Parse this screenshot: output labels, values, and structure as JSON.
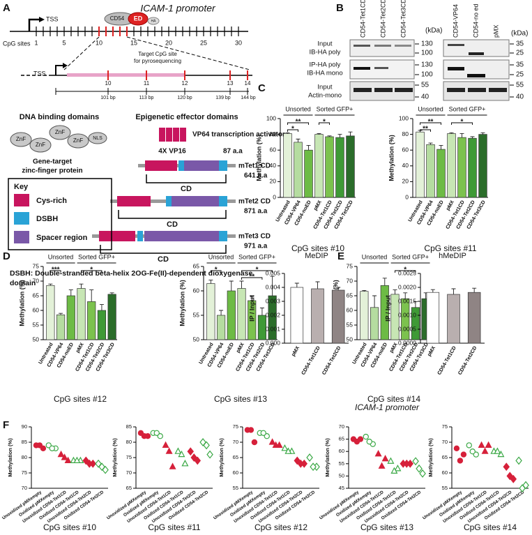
{
  "panel_labels": [
    "A",
    "B",
    "C",
    "D",
    "E",
    "F"
  ],
  "diagram": {
    "promoter_title": "ICAM-1 promoter",
    "tss": [
      "TSS",
      "TSS"
    ],
    "cpg_sites_label": "CpG sites",
    "cpg_site_numbers": [
      1,
      5,
      10,
      15,
      20,
      25,
      30
    ],
    "fusion": {
      "dbd": "CD54",
      "effector": "ED",
      "tag": "HA"
    },
    "target_label": [
      "Target CpG site",
      "for pyrosequencing"
    ],
    "target_sites": [
      10,
      11,
      12,
      13,
      14
    ],
    "distances": [
      "101 bp",
      "113 bp",
      "120 bp",
      "139 bp",
      "144 bp"
    ],
    "dna_binding_title": "DNA binding domains",
    "znf": [
      "ZnF",
      "ZnF",
      "ZnF",
      "ZnF"
    ],
    "nls": "NLS",
    "znf_caption": [
      "Gene-target",
      "zinc-finger protein"
    ],
    "effector_title": "Epigenetic effector domains",
    "vp64": {
      "name": "VP64 transcription activator",
      "composition": "4X VP16",
      "length": "87 a.a"
    },
    "tet_constructs": [
      {
        "name": "mTet1 CD",
        "length": "641 a.a",
        "domain": "CD"
      },
      {
        "name": "mTet2 CD",
        "length": "871 a.a",
        "domain": "CD"
      },
      {
        "name": "mTet3 CD",
        "length": "971 a.a",
        "domain": "CD"
      }
    ],
    "key": {
      "title": "Key",
      "items": [
        "Cys-rich",
        "DSBH",
        "Spacer region"
      ]
    },
    "footnote": [
      "DSBH: Double-stranded beta-helix 2OG-Fe(II)-dependent dioxygenase",
      "domain"
    ]
  },
  "blot": {
    "lanes_left": [
      "CD54-Tet1CD",
      "CD54-Tet2CD",
      "CD54-Tet3CD"
    ],
    "lanes_right": [
      "CD54-VP64",
      "CD54-no ed",
      "pMX"
    ],
    "kda": [
      "(kDa)",
      "(kDa)"
    ],
    "rows": [
      [
        "Input",
        "IB-HA poly"
      ],
      [
        "IP-HA poly",
        "IB-HA mono"
      ],
      [
        "Input",
        "Actin-mono"
      ]
    ],
    "markers_left": [
      130,
      100,
      130,
      100,
      55,
      40
    ],
    "markers_right": [
      35,
      25,
      35,
      25,
      55,
      40
    ]
  },
  "e_caption": "ICAM-1 promoter",
  "chart_data": [
    {
      "type": "bar",
      "title": "CpG sites #10",
      "ylabel": "Methylation (%)",
      "categories": [
        "Untreated",
        "CD54-VP64",
        "CD54-noED",
        "pMX",
        "CD54-Tet1CD",
        "CD54-Tet2CD",
        "CD54-Tet3CD"
      ],
      "values": [
        81,
        70,
        60,
        80,
        77,
        76,
        78
      ],
      "errors": [
        1,
        4,
        6,
        1,
        1,
        4,
        5
      ],
      "colors": [
        "#e3f1d8",
        "#b5dca0",
        "#6dbb45",
        "#c7e6b4",
        "#7cc24e",
        "#3f9a36",
        "#2b6d2a"
      ],
      "ylim": [
        0,
        100
      ],
      "yticks": [
        0,
        20,
        40,
        60,
        80,
        100
      ],
      "groups": [
        {
          "label": "Unsorted",
          "members": [
            "Untreated",
            "CD54-VP64",
            "CD54-noED"
          ]
        },
        {
          "label": "Sorted GFP+",
          "members": [
            "pMX",
            "CD54-Tet1CD",
            "CD54-Tet2CD",
            "CD54-Tet3CD"
          ]
        }
      ],
      "significance": [
        {
          "label": "**",
          "pair": [
            "Untreated",
            "CD54-noED"
          ]
        },
        {
          "label": "*",
          "pair": [
            "Untreated",
            "CD54-VP64"
          ]
        },
        {
          "label": "*",
          "pair": [
            "pMX",
            "CD54-Tet1CD"
          ]
        }
      ]
    },
    {
      "type": "bar",
      "title": "CpG sites #11",
      "ylabel": "Methylation (%)",
      "categories": [
        "Untreated",
        "CD54-VP64",
        "CD54-noED",
        "pMX",
        "CD54-Tet1CD",
        "CD54-Tet2CD",
        "CD54-Tet3CD"
      ],
      "values": [
        83,
        67,
        61,
        81,
        76,
        75,
        80
      ],
      "errors": [
        2,
        2,
        5,
        1,
        5,
        2,
        2
      ],
      "colors": [
        "#e3f1d8",
        "#b5dca0",
        "#6dbb45",
        "#c7e6b4",
        "#7cc24e",
        "#3f9a36",
        "#2b6d2a"
      ],
      "ylim": [
        0,
        100
      ],
      "yticks": [
        0,
        20,
        40,
        60,
        80,
        100
      ],
      "groups": [
        {
          "label": "Unsorted",
          "members": [
            "Untreated",
            "CD54-VP64",
            "CD54-noED"
          ]
        },
        {
          "label": "Sorted GFP+",
          "members": [
            "pMX",
            "CD54-Tet1CD",
            "CD54-Tet2CD",
            "CD54-Tet3CD"
          ]
        }
      ],
      "significance": [
        {
          "label": "**",
          "pair": [
            "Untreated",
            "CD54-noED"
          ]
        },
        {
          "label": "**",
          "pair": [
            "Untreated",
            "CD54-VP64"
          ]
        },
        {
          "label": "*",
          "pair": [
            "pMX",
            "CD54-Tet2CD"
          ]
        }
      ]
    },
    {
      "type": "bar",
      "title": "CpG sites #12",
      "ylabel": "Methylation (%)",
      "categories": [
        "Untreated",
        "CD54-VP64",
        "CD54-noED",
        "pMX",
        "CD54-Tet1CD",
        "CD54-Tet2CD",
        "CD54-Tet3CD"
      ],
      "values": [
        68.5,
        58.5,
        65,
        67.5,
        63,
        60,
        65.5
      ],
      "errors": [
        0.5,
        0.5,
        2,
        1.5,
        4,
        2,
        0.5
      ],
      "colors": [
        "#e3f1d8",
        "#b5dca0",
        "#6dbb45",
        "#c7e6b4",
        "#7cc24e",
        "#3f9a36",
        "#2b6d2a"
      ],
      "ylim": [
        50,
        75
      ],
      "yticks": [
        50,
        55,
        60,
        65,
        70,
        75
      ],
      "groups": [
        {
          "label": "Unsorted",
          "members": [
            "Untreated",
            "CD54-VP64",
            "CD54-noED"
          ]
        },
        {
          "label": "Sorted GFP+",
          "members": [
            "pMX",
            "CD54-Tet1CD",
            "CD54-Tet2CD",
            "CD54-Tet3CD"
          ]
        }
      ],
      "significance": [
        {
          "label": "***",
          "pair": [
            "Untreated",
            "CD54-VP64"
          ]
        },
        {
          "label": "*",
          "pair": [
            "pMX",
            "CD54-Tet2CD"
          ]
        }
      ]
    },
    {
      "type": "bar",
      "title": "CpG sites #13",
      "ylabel": "Methylation (%)",
      "categories": [
        "Untreated",
        "CD54-VP64",
        "CD54-noED",
        "pMX",
        "CD54-Tet1CD",
        "CD54-Tet2CD",
        "CD54-Tet3CD"
      ],
      "values": [
        61.5,
        55,
        60,
        60.5,
        58,
        55,
        59
      ],
      "errors": [
        0.7,
        1,
        2,
        1.5,
        1,
        1.5,
        4
      ],
      "colors": [
        "#e3f1d8",
        "#b5dca0",
        "#6dbb45",
        "#c7e6b4",
        "#7cc24e",
        "#3f9a36",
        "#2b6d2a"
      ],
      "ylim": [
        50,
        65
      ],
      "yticks": [
        50,
        55,
        60,
        65
      ],
      "groups": [
        {
          "label": "Unsorted",
          "members": [
            "Untreated",
            "CD54-VP64",
            "CD54-noED"
          ]
        },
        {
          "label": "Sorted GFP+",
          "members": [
            "pMX",
            "CD54-Tet1CD",
            "CD54-Tet2CD",
            "CD54-Tet3CD"
          ]
        }
      ],
      "significance": [
        {
          "label": "*",
          "pair": [
            "pMX",
            "CD54-Tet3CD"
          ]
        },
        {
          "label": "*",
          "pair": [
            "Untreated",
            "CD54-VP64"
          ]
        },
        {
          "label": "**",
          "pair": [
            "pMX",
            "CD54-Tet2CD"
          ]
        }
      ]
    },
    {
      "type": "bar",
      "title": "CpG sites #14",
      "ylabel": "Methylation (%)",
      "categories": [
        "Untreated",
        "CD54-VP64",
        "CD54-noED",
        "pMX",
        "CD54-Tet1CD",
        "CD54-Tet2CD",
        "CD54-Tet3CD"
      ],
      "values": [
        66.5,
        61,
        68.5,
        65.5,
        64,
        61,
        64
      ],
      "errors": [
        0.3,
        4,
        2.5,
        1.5,
        2,
        2,
        2
      ],
      "colors": [
        "#e3f1d8",
        "#b5dca0",
        "#6dbb45",
        "#c7e6b4",
        "#7cc24e",
        "#3f9a36",
        "#2b6d2a"
      ],
      "ylim": [
        50,
        75
      ],
      "yticks": [
        50,
        55,
        60,
        65,
        70,
        75
      ],
      "groups": [
        {
          "label": "Unsorted",
          "members": [
            "Untreated",
            "CD54-VP64",
            "CD54-noED"
          ]
        },
        {
          "label": "Sorted GFP+",
          "members": [
            "pMX",
            "CD54-Tet1CD",
            "CD54-Tet2CD",
            "CD54-Tet3CD"
          ]
        }
      ],
      "significance": [
        {
          "label": "*",
          "pair": [
            "pMX",
            "CD54-Tet2CD"
          ]
        }
      ]
    },
    {
      "type": "bar",
      "title": "MeDIP",
      "ylabel": "IP / Input",
      "categories": [
        "pMX",
        "CD54-Tet1CD",
        "CD54-Tet2CD"
      ],
      "values": [
        0.004,
        0.0039,
        0.0038
      ],
      "errors": [
        0.0003,
        0.0005,
        0.0002
      ],
      "colors": [
        "#ffffff",
        "#b9afaf",
        "#8f8484"
      ],
      "ylim": [
        0,
        0.005
      ],
      "yticks": [
        {
          "value": 0,
          "label": "0.000"
        },
        {
          "value": 0.001,
          "label": "0.001"
        },
        {
          "value": 0.002,
          "label": "0.002"
        },
        {
          "value": 0.003,
          "label": "0.003"
        },
        {
          "value": 0.004,
          "label": "0.004"
        },
        {
          "value": 0.005,
          "label": "0.005"
        }
      ]
    },
    {
      "type": "bar",
      "title": "hMeDIP",
      "ylabel": "IP / Input",
      "categories": [
        "pMX",
        "CD54-Tet1CD",
        "CD54-Tet2CD"
      ],
      "values": [
        0.00182,
        0.00175,
        0.00182
      ],
      "errors": [
        0.0001,
        0.0002,
        0.00015
      ],
      "colors": [
        "#ffffff",
        "#b9afaf",
        "#8f8484"
      ],
      "ylim": [
        0,
        0.0025
      ],
      "yticks": [
        {
          "value": 0,
          "label": "0.0000"
        },
        {
          "value": 0.0005,
          "label": "0.0005"
        },
        {
          "value": 0.001,
          "label": "0.0010"
        },
        {
          "value": 0.0015,
          "label": "0.0015"
        },
        {
          "value": 0.002,
          "label": "0.0020"
        },
        {
          "value": 0.0025,
          "label": "0.0025"
        }
      ]
    },
    {
      "type": "dot",
      "title": "CpG sites #10",
      "ylabel": "Methylation (%)",
      "categories": [
        "Unoxidized pMXempty",
        "Oxidized pMXempty",
        "Unoxidized CD54-Tet1CD",
        "Oxidized CD54-Tet1CD",
        "Unoxidized CD54-Tet2CD",
        "Oxidized CD54-Tet2CD"
      ],
      "values": [
        [
          84,
          83,
          84
        ],
        [
          84,
          83,
          83
        ],
        [
          81,
          79,
          80
        ],
        [
          79,
          79,
          79
        ],
        [
          79,
          78,
          78
        ],
        [
          78,
          76,
          77
        ]
      ],
      "colors": [
        "#d6203a",
        "#3aa845",
        "#d6203a",
        "#3aa845",
        "#d6203a",
        "#3aa845"
      ],
      "filled": [
        true,
        false,
        true,
        false,
        true,
        false
      ],
      "markers": [
        "circle",
        "circle",
        "triangle",
        "triangle",
        "diamond",
        "diamond"
      ],
      "ylim": [
        70,
        90
      ],
      "yticks": [
        70,
        75,
        80,
        85,
        90
      ]
    },
    {
      "type": "dot",
      "title": "CpG sites #11",
      "ylabel": "Methylation (%)",
      "categories": [
        "Unoxidized pMXempty",
        "Oxidized pMXempty",
        "Unoxidized CD54-Tet1CD",
        "Oxidized CD54-Tet1CD",
        "Unoxidized CD54-Tet2CD",
        "Oxidized CD54-Tet2CD"
      ],
      "values": [
        [
          83,
          82,
          82
        ],
        [
          83,
          82,
          83
        ],
        [
          79,
          72,
          77
        ],
        [
          77,
          73,
          76
        ],
        [
          77,
          74,
          75
        ],
        [
          80,
          76,
          79
        ]
      ],
      "colors": [
        "#d6203a",
        "#3aa845",
        "#d6203a",
        "#3aa845",
        "#d6203a",
        "#3aa845"
      ],
      "filled": [
        true,
        false,
        true,
        false,
        true,
        false
      ],
      "markers": [
        "circle",
        "circle",
        "triangle",
        "triangle",
        "diamond",
        "diamond"
      ],
      "ylim": [
        65,
        85
      ],
      "yticks": [
        65,
        70,
        75,
        80,
        85
      ]
    },
    {
      "type": "dot",
      "title": "CpG sites #12",
      "ylabel": "Methylation (%)",
      "categories": [
        "Unoxidized pMXempty",
        "Oxidized pMXempty",
        "Unoxidized CD54-Tet1CD",
        "Oxidized CD54-Tet1CD",
        "Unoxidized CD54-Tet2CD",
        "Oxidized CD54-Tet2CD"
      ],
      "values": [
        [
          74,
          70,
          74
        ],
        [
          73,
          72,
          73
        ],
        [
          70,
          69,
          69
        ],
        [
          68,
          67,
          67
        ],
        [
          64,
          63,
          63
        ],
        [
          65,
          62,
          62
        ]
      ],
      "colors": [
        "#d6203a",
        "#3aa845",
        "#d6203a",
        "#3aa845",
        "#d6203a",
        "#3aa845"
      ],
      "filled": [
        true,
        false,
        true,
        false,
        true,
        false
      ],
      "markers": [
        "circle",
        "circle",
        "triangle",
        "triangle",
        "diamond",
        "diamond"
      ],
      "ylim": [
        55,
        75
      ],
      "yticks": [
        55,
        60,
        65,
        70,
        75
      ]
    },
    {
      "type": "dot",
      "title": "CpG sites #13",
      "ylabel": "Methylation (%)",
      "categories": [
        "Unoxidized pMXempty",
        "Oxidized pMXempty",
        "Unoxidized CD54-Tet1CD",
        "Oxidized CD54-Tet1CD",
        "Unoxidized CD54-Tet2CD",
        "Oxidized CD54-Tet2CD"
      ],
      "values": [
        [
          65,
          65,
          64
        ],
        [
          66,
          63,
          64
        ],
        [
          59,
          57,
          54
        ],
        [
          56,
          53,
          52
        ],
        [
          55,
          55,
          55
        ],
        [
          56,
          51,
          53
        ]
      ],
      "colors": [
        "#d6203a",
        "#3aa845",
        "#d6203a",
        "#3aa845",
        "#d6203a",
        "#3aa845"
      ],
      "filled": [
        true,
        false,
        true,
        false,
        true,
        false
      ],
      "markers": [
        "circle",
        "circle",
        "triangle",
        "triangle",
        "diamond",
        "diamond"
      ],
      "ylim": [
        45,
        70
      ],
      "yticks": [
        45,
        50,
        55,
        60,
        65,
        70
      ]
    },
    {
      "type": "dot",
      "title": "CpG sites #14",
      "ylabel": "Methylation (%)",
      "categories": [
        "Unoxidized pMXempty",
        "Oxidized pMXempty",
        "Unoxidized CD54-Tet1CD",
        "Oxidized CD54-Tet1CD",
        "Unoxidized CD54-Tet2CD",
        "Oxidized CD54-Tet2CD"
      ],
      "values": [
        [
          68,
          66,
          64
        ],
        [
          69,
          66,
          67
        ],
        [
          69,
          69,
          67
        ],
        [
          67,
          66,
          67
        ],
        [
          62,
          58,
          59
        ],
        [
          64,
          56,
          55
        ]
      ],
      "colors": [
        "#d6203a",
        "#3aa845",
        "#d6203a",
        "#3aa845",
        "#d6203a",
        "#3aa845"
      ],
      "filled": [
        true,
        false,
        true,
        false,
        true,
        false
      ],
      "markers": [
        "circle",
        "circle",
        "triangle",
        "triangle",
        "diamond",
        "diamond"
      ],
      "ylim": [
        55,
        75
      ],
      "yticks": [
        55,
        60,
        65,
        70,
        75
      ]
    }
  ]
}
